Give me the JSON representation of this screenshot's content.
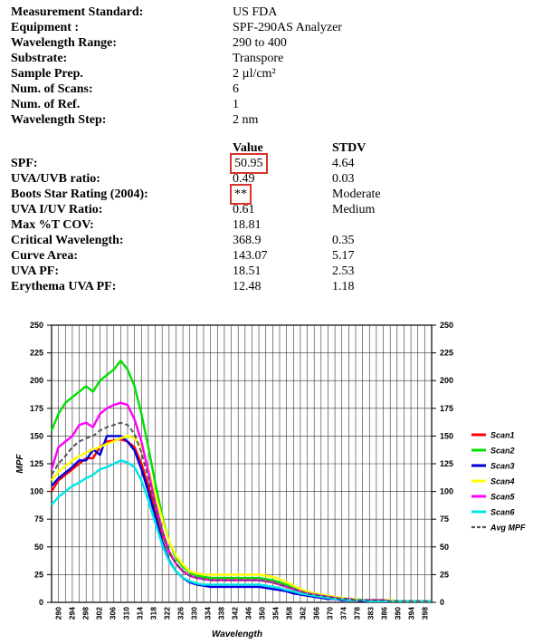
{
  "info": [
    {
      "label": "Measurement Standard:",
      "value": "US FDA"
    },
    {
      "label": "Equipment :",
      "value": "SPF-290AS Analyzer"
    },
    {
      "label": "Wavelength Range:",
      "value": "290 to 400"
    },
    {
      "label": "Substrate:",
      "value": "Transpore"
    },
    {
      "label": "Sample Prep.",
      "value": "2 µl/cm²"
    },
    {
      "label": "Num. of Scans:",
      "value": "6"
    },
    {
      "label": "Num. of Ref.",
      "value": "1"
    },
    {
      "label": "Wavelength Step:",
      "value": "2 nm"
    }
  ],
  "results_header": {
    "value": "Value",
    "stdv": "STDV"
  },
  "results": [
    {
      "label": "SPF:",
      "value": "50.95",
      "stdv": "4.64",
      "boxed": true
    },
    {
      "label": "UVA/UVB ratio:",
      "value": "0.49",
      "stdv": "0.03"
    },
    {
      "label": "Boots Star Rating (2004):",
      "value": "**",
      "stdv": "Moderate",
      "boxed": true
    },
    {
      "label": "UVA I/UV Ratio:",
      "value": "0.61",
      "stdv": "Medium"
    },
    {
      "label": "Max %T COV:",
      "value": "18.81",
      "stdv": ""
    },
    {
      "label": "Critical Wavelength:",
      "value": "368.9",
      "stdv": "0.35"
    },
    {
      "label": "Curve Area:",
      "value": "143.07",
      "stdv": "5.17"
    },
    {
      "label": "UVA PF:",
      "value": "18.51",
      "stdv": "2.53"
    },
    {
      "label": "Erythema UVA PF:",
      "value": "12.48",
      "stdv": "1.18"
    }
  ],
  "colors": {
    "box": "#d9342b"
  },
  "chart_data": {
    "type": "line",
    "xlabel": "Wavelength",
    "ylabel": "MPF",
    "xlim": [
      290,
      400
    ],
    "ylim": [
      0,
      250
    ],
    "y_ticks": [
      0,
      25,
      50,
      75,
      100,
      125,
      150,
      175,
      200,
      225,
      250
    ],
    "x_tick_labels": [
      "290",
      "294",
      "298",
      "302",
      "306",
      "310",
      "314",
      "318",
      "322",
      "326",
      "330",
      "334",
      "338",
      "342",
      "346",
      "350",
      "354",
      "358",
      "362",
      "366",
      "370",
      "374",
      "378",
      "383",
      "386",
      "390",
      "394",
      "398"
    ],
    "grid": true,
    "legend_position": "right",
    "x": [
      290,
      292,
      294,
      296,
      298,
      300,
      302,
      304,
      306,
      308,
      310,
      312,
      314,
      316,
      318,
      320,
      322,
      324,
      326,
      328,
      330,
      332,
      334,
      336,
      338,
      340,
      342,
      344,
      346,
      348,
      350,
      352,
      354,
      356,
      358,
      360,
      362,
      364,
      366,
      368,
      370,
      372,
      374,
      376,
      378,
      380,
      382,
      384,
      386,
      388,
      390,
      392,
      394,
      396,
      398,
      400
    ],
    "series": [
      {
        "name": "Scan1",
        "color": "#ff0000",
        "dashed": false,
        "values": [
          100,
          110,
          115,
          120,
          125,
          130,
          130,
          140,
          145,
          146,
          147,
          145,
          140,
          125,
          105,
          85,
          62,
          45,
          35,
          28,
          24,
          22,
          21,
          20,
          20,
          20,
          20,
          20,
          20,
          20,
          20,
          19,
          18,
          16,
          14,
          12,
          10,
          8,
          7,
          6,
          5,
          4,
          3,
          3,
          2,
          2,
          2,
          2,
          2,
          1,
          1,
          1,
          1,
          1,
          1,
          1
        ]
      },
      {
        "name": "Scan2",
        "color": "#00e000",
        "dashed": false,
        "values": [
          155,
          170,
          180,
          185,
          190,
          195,
          190,
          200,
          205,
          210,
          218,
          210,
          195,
          170,
          140,
          108,
          78,
          55,
          40,
          32,
          27,
          24,
          23,
          22,
          22,
          22,
          22,
          22,
          22,
          22,
          22,
          21,
          20,
          18,
          16,
          14,
          12,
          10,
          8,
          7,
          6,
          5,
          4,
          3,
          3,
          2,
          2,
          2,
          2,
          2,
          1,
          1,
          1,
          1,
          1,
          1
        ]
      },
      {
        "name": "Scan3",
        "color": "#0000dd",
        "dashed": false,
        "values": [
          105,
          112,
          117,
          122,
          128,
          128,
          138,
          133,
          150,
          150,
          150,
          145,
          137,
          120,
          100,
          78,
          55,
          38,
          28,
          22,
          18,
          16,
          15,
          14,
          14,
          14,
          14,
          14,
          14,
          14,
          14,
          13,
          12,
          11,
          10,
          8,
          7,
          6,
          5,
          4,
          3,
          3,
          2,
          2,
          2,
          1,
          1,
          1,
          1,
          1,
          1,
          1,
          1,
          1,
          1,
          1
        ]
      },
      {
        "name": "Scan4",
        "color": "#ffff00",
        "dashed": false,
        "values": [
          110,
          118,
          123,
          128,
          132,
          135,
          138,
          140,
          143,
          145,
          148,
          150,
          148,
          140,
          120,
          98,
          75,
          55,
          42,
          34,
          28,
          26,
          25,
          25,
          25,
          25,
          25,
          25,
          25,
          25,
          25,
          24,
          23,
          21,
          18,
          15,
          12,
          10,
          8,
          7,
          6,
          5,
          4,
          3,
          3,
          2,
          2,
          2,
          2,
          2,
          1,
          1,
          1,
          1,
          1,
          1
        ]
      },
      {
        "name": "Scan5",
        "color": "#ff00ff",
        "dashed": false,
        "values": [
          120,
          140,
          145,
          150,
          160,
          162,
          158,
          170,
          175,
          178,
          180,
          178,
          165,
          145,
          118,
          90,
          65,
          46,
          35,
          28,
          24,
          22,
          21,
          20,
          20,
          20,
          20,
          20,
          20,
          20,
          20,
          19,
          18,
          16,
          14,
          12,
          10,
          8,
          7,
          6,
          5,
          4,
          3,
          3,
          2,
          2,
          2,
          2,
          2,
          1,
          1,
          1,
          1,
          1,
          1,
          1
        ]
      },
      {
        "name": "Scan6",
        "color": "#00e5e5",
        "dashed": false,
        "values": [
          88,
          95,
          100,
          105,
          108,
          112,
          115,
          120,
          122,
          125,
          128,
          126,
          122,
          110,
          92,
          72,
          52,
          37,
          28,
          22,
          19,
          17,
          16,
          16,
          16,
          16,
          16,
          16,
          16,
          16,
          16,
          15,
          14,
          13,
          11,
          10,
          8,
          7,
          6,
          5,
          4,
          3,
          3,
          2,
          2,
          2,
          1,
          1,
          1,
          1,
          1,
          1,
          1,
          1,
          1,
          1
        ]
      },
      {
        "name": "Avg MPF",
        "color": "#555555",
        "dashed": true,
        "values": [
          115,
          125,
          132,
          140,
          145,
          148,
          150,
          155,
          158,
          160,
          162,
          160,
          152,
          135,
          112,
          88,
          64,
          46,
          35,
          28,
          24,
          22,
          21,
          20,
          20,
          20,
          20,
          20,
          20,
          20,
          20,
          19,
          18,
          16,
          14,
          12,
          10,
          8,
          7,
          6,
          5,
          4,
          3,
          3,
          2,
          2,
          2,
          2,
          2,
          1,
          1,
          1,
          1,
          1,
          1,
          1
        ]
      }
    ]
  }
}
